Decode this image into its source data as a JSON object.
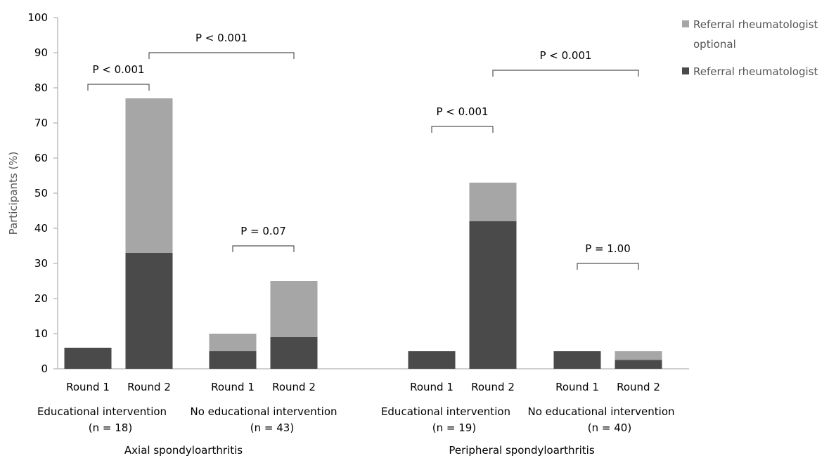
{
  "chart_data": {
    "type": "bar",
    "stacked": true,
    "ylabel": "Participants (%)",
    "ylim": [
      0,
      100
    ],
    "yticks": [
      0,
      10,
      20,
      30,
      40,
      50,
      60,
      70,
      80,
      90,
      100
    ],
    "grid": false,
    "legend_position": "top-right",
    "colors": {
      "Referral rheumatologist": "#4a4a4a",
      "Referral rheumatologist optional": "#a6a6a6",
      "axis": "#bfbfbf",
      "bracket": "#555555"
    },
    "series": [
      {
        "name": "Referral rheumatologist",
        "color": "#4a4a4a"
      },
      {
        "name": "Referral rheumatologist optional",
        "color": "#a6a6a6"
      }
    ],
    "legend": [
      {
        "lines": [
          "Referral rheumatologist",
          "optional"
        ],
        "series": 1
      },
      {
        "lines": [
          "Referral rheumatologist"
        ],
        "series": 0
      }
    ],
    "panels": [
      {
        "title": "Axial spondyloarthritis",
        "groups": [
          {
            "label_lines": [
              "Educational intervention",
              "(n = 18)"
            ],
            "bars": [
              {
                "label": "Round 1",
                "values": [
                  6,
                  0
                ]
              },
              {
                "label": "Round 2",
                "values": [
                  33,
                  44
                ]
              }
            ]
          },
          {
            "label_lines": [
              "No educational intervention",
              "(n = 43)"
            ],
            "bars": [
              {
                "label": "Round 1",
                "values": [
                  5,
                  5
                ]
              },
              {
                "label": "Round 2",
                "values": [
                  9,
                  16
                ]
              }
            ]
          }
        ]
      },
      {
        "title": "Peripheral spondyloarthritis",
        "groups": [
          {
            "label_lines": [
              "Educational intervention",
              "(n = 19)"
            ],
            "bars": [
              {
                "label": "Round 1",
                "values": [
                  5,
                  0
                ]
              },
              {
                "label": "Round 2",
                "values": [
                  42,
                  11
                ]
              }
            ]
          },
          {
            "label_lines": [
              "No educational intervention",
              "(n = 40)"
            ],
            "bars": [
              {
                "label": "Round 1",
                "values": [
                  5,
                  0
                ]
              },
              {
                "label": "Round 2",
                "values": [
                  2.5,
                  2.5
                ]
              }
            ]
          }
        ]
      }
    ],
    "annotations": [
      {
        "text": "P < 0.001",
        "between": [
          [
            0,
            0,
            0
          ],
          [
            0,
            0,
            1
          ]
        ],
        "level": 81
      },
      {
        "text": "P < 0.001",
        "between": [
          [
            0,
            0,
            1
          ],
          [
            0,
            1,
            1
          ]
        ],
        "level": 90
      },
      {
        "text": "P = 0.07",
        "between": [
          [
            0,
            1,
            0
          ],
          [
            0,
            1,
            1
          ]
        ],
        "level": 35
      },
      {
        "text": "P < 0.001",
        "between": [
          [
            1,
            0,
            0
          ],
          [
            1,
            0,
            1
          ]
        ],
        "level": 69
      },
      {
        "text": "P < 0.001",
        "between": [
          [
            1,
            0,
            1
          ],
          [
            1,
            1,
            1
          ]
        ],
        "level": 85
      },
      {
        "text": "P = 1.00",
        "between": [
          [
            1,
            1,
            0
          ],
          [
            1,
            1,
            1
          ]
        ],
        "level": 30
      }
    ]
  }
}
